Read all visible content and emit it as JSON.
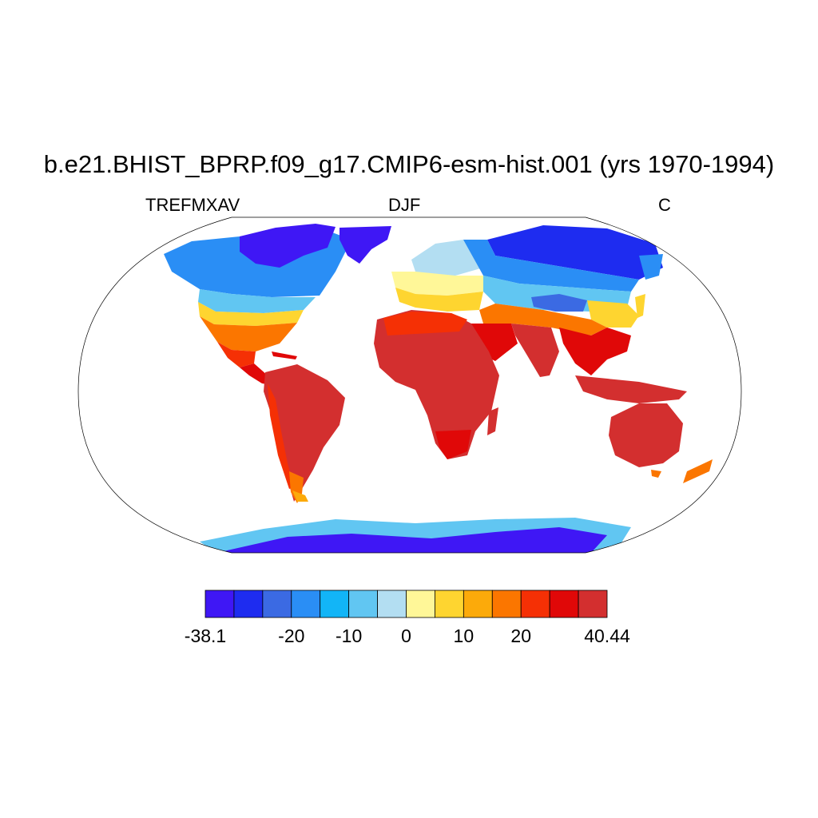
{
  "title": "b.e21.BHIST_BPRP.f09_g17.CMIP6-esm-hist.001 (yrs 1970-1994)",
  "subtitle_left": "TREFMXAV",
  "subtitle_center": "DJF",
  "subtitle_right": "C",
  "colorbar": {
    "colors": [
      "#3f17f5",
      "#1e2cf0",
      "#3b6ae3",
      "#2a8ef5",
      "#12b5f7",
      "#61c6f2",
      "#b3def2",
      "#fff798",
      "#fed530",
      "#fcaa0a",
      "#fb7600",
      "#f53005",
      "#e00808",
      "#d32f2f"
    ],
    "boundaries": [
      -38.1,
      -30,
      -25,
      -20,
      -15,
      -10,
      -5,
      0,
      5,
      10,
      15,
      20,
      25,
      30,
      40.44
    ],
    "tick_labels": [
      "-38.1",
      "-20",
      "-10",
      "0",
      "10",
      "20",
      "40.44"
    ],
    "tick_values": [
      -38.1,
      -20,
      -10,
      0,
      10,
      20,
      40.44
    ]
  }
}
